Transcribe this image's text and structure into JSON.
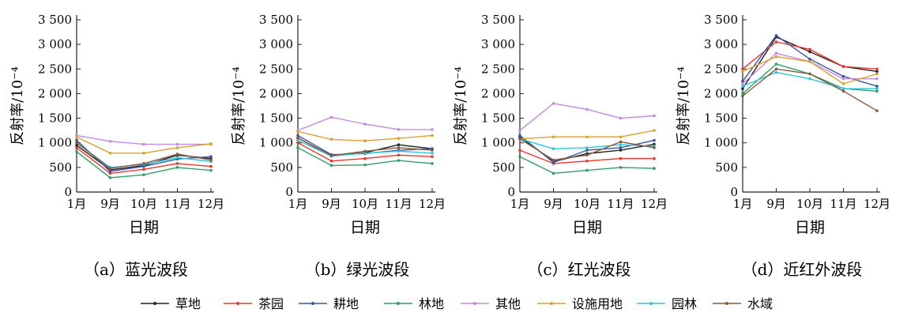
{
  "categories": [
    "1月",
    "9月",
    "10月",
    "11月",
    "12月"
  ],
  "ylabel": "反射率/10⁻⁴",
  "xlabel": "日期",
  "yticks": [
    "0",
    "500",
    "1 000",
    "1 500",
    "2 000",
    "2 500",
    "3 000",
    "3 500"
  ],
  "legend": {
    "names": [
      "草地",
      "茶园",
      "耕地",
      "林地",
      "其他",
      "设施用地",
      "园林",
      "水域"
    ],
    "colors": [
      "#222222",
      "#e8362a",
      "#3a55a8",
      "#2f9e67",
      "#c58be0",
      "#d9a12c",
      "#2ec4d9",
      "#8a5a3c"
    ]
  },
  "chart_data": [
    {
      "type": "line",
      "caption": "（a）蓝光波段",
      "ylim": [
        0,
        3500
      ],
      "categories": [
        "1月",
        "9月",
        "10月",
        "11月",
        "12月"
      ],
      "series": [
        {
          "name": "草地",
          "values": [
            950,
            450,
            540,
            750,
            680
          ]
        },
        {
          "name": "茶园",
          "values": [
            900,
            380,
            460,
            580,
            520
          ]
        },
        {
          "name": "耕地",
          "values": [
            1050,
            420,
            520,
            670,
            720
          ]
        },
        {
          "name": "林地",
          "values": [
            820,
            290,
            350,
            500,
            440
          ]
        },
        {
          "name": "其他",
          "values": [
            1150,
            1030,
            970,
            970,
            970
          ]
        },
        {
          "name": "设施用地",
          "values": [
            1120,
            790,
            790,
            900,
            980
          ]
        },
        {
          "name": "园林",
          "values": [
            1000,
            500,
            560,
            700,
            620
          ]
        },
        {
          "name": "水域",
          "values": [
            1000,
            480,
            580,
            770,
            650
          ]
        }
      ]
    },
    {
      "type": "line",
      "caption": "（b）绿光波段",
      "ylim": [
        0,
        3500
      ],
      "categories": [
        "1月",
        "9月",
        "10月",
        "11月",
        "12月"
      ],
      "series": [
        {
          "name": "草地",
          "values": [
            1100,
            730,
            800,
            960,
            880
          ]
        },
        {
          "name": "茶园",
          "values": [
            1000,
            630,
            680,
            750,
            720
          ]
        },
        {
          "name": "耕地",
          "values": [
            1150,
            760,
            780,
            850,
            880
          ]
        },
        {
          "name": "林地",
          "values": [
            900,
            540,
            550,
            640,
            580
          ]
        },
        {
          "name": "其他",
          "values": [
            1250,
            1520,
            1380,
            1270,
            1270
          ]
        },
        {
          "name": "设施用地",
          "values": [
            1230,
            1070,
            1040,
            1090,
            1150
          ]
        },
        {
          "name": "园林",
          "values": [
            1050,
            730,
            790,
            830,
            790
          ]
        },
        {
          "name": "水域",
          "values": [
            1100,
            740,
            830,
            900,
            850
          ]
        }
      ]
    },
    {
      "type": "line",
      "caption": "（c）红光波段",
      "ylim": [
        0,
        3500
      ],
      "categories": [
        "1月",
        "9月",
        "10月",
        "11月",
        "12月"
      ],
      "series": [
        {
          "name": "草地",
          "values": [
            1120,
            620,
            780,
            850,
            970
          ]
        },
        {
          "name": "茶园",
          "values": [
            850,
            580,
            630,
            680,
            680
          ]
        },
        {
          "name": "耕地",
          "values": [
            1150,
            600,
            850,
            900,
            1050
          ]
        },
        {
          "name": "林地",
          "values": [
            720,
            380,
            440,
            500,
            480
          ]
        },
        {
          "name": "其他",
          "values": [
            1250,
            1800,
            1680,
            1500,
            1550
          ]
        },
        {
          "name": "设施用地",
          "values": [
            1080,
            1120,
            1120,
            1120,
            1250
          ]
        },
        {
          "name": "园林",
          "values": [
            1080,
            880,
            900,
            960,
            930
          ]
        },
        {
          "name": "水域",
          "values": [
            1080,
            650,
            750,
            1020,
            900
          ]
        }
      ]
    },
    {
      "type": "line",
      "caption": "（d）近红外波段",
      "ylim": [
        0,
        3500
      ],
      "categories": [
        "1月",
        "9月",
        "10月",
        "11月",
        "12月"
      ],
      "series": [
        {
          "name": "草地",
          "values": [
            2100,
            3150,
            2850,
            2550,
            2450
          ]
        },
        {
          "name": "茶园",
          "values": [
            2500,
            3050,
            2900,
            2550,
            2500
          ]
        },
        {
          "name": "耕地",
          "values": [
            2250,
            3180,
            2700,
            2350,
            2150
          ]
        },
        {
          "name": "林地",
          "values": [
            2000,
            2600,
            2400,
            2100,
            2050
          ]
        },
        {
          "name": "其他",
          "values": [
            2200,
            2820,
            2650,
            2300,
            2300
          ]
        },
        {
          "name": "设施用地",
          "values": [
            2450,
            2750,
            2650,
            2200,
            2400
          ]
        },
        {
          "name": "园林",
          "values": [
            2150,
            2430,
            2300,
            2100,
            2100
          ]
        },
        {
          "name": "水域",
          "values": [
            1950,
            2500,
            2400,
            2050,
            1650
          ]
        }
      ]
    }
  ]
}
